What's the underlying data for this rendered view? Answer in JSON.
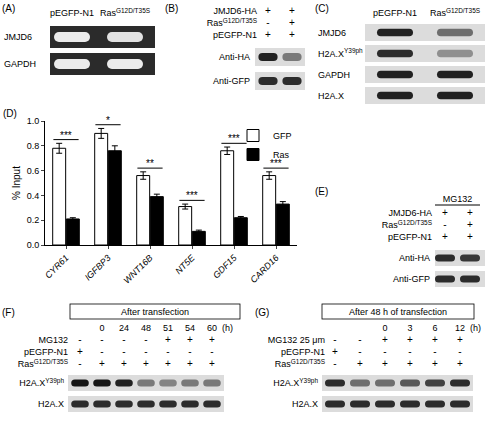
{
  "chart_data": {
    "type": "bar",
    "panel_label": "(D)",
    "y_label": "% Input",
    "categories": [
      "CYR61",
      "IGFBP3",
      "WNT16B",
      "NT5E",
      "GDF15",
      "CARD16"
    ],
    "series": [
      {
        "name": "GFP",
        "color": "#ffffff",
        "values": [
          0.78,
          0.9,
          0.56,
          0.31,
          0.76,
          0.56
        ],
        "errors": [
          0.04,
          0.04,
          0.03,
          0.02,
          0.03,
          0.03
        ]
      },
      {
        "name": "Ras",
        "color": "#000000",
        "values": [
          0.21,
          0.76,
          0.39,
          0.11,
          0.22,
          0.33
        ],
        "errors": [
          0.01,
          0.04,
          0.02,
          0.01,
          0.01,
          0.02
        ]
      }
    ],
    "significance": [
      "***",
      "*",
      "**",
      "***",
      "***",
      "***"
    ],
    "ylim": [
      0,
      1.0
    ],
    "yticks": [
      {
        "value": 0,
        "label": "0.0"
      },
      {
        "value": 0.2,
        "label": "0.2"
      },
      {
        "value": 0.4,
        "label": "0.4"
      },
      {
        "value": 0.6,
        "label": "0.6"
      },
      {
        "value": 0.8,
        "label": "0.8"
      },
      {
        "value": 1.0,
        "label": "1.0"
      }
    ],
    "legend": "upper right",
    "grid": false
  },
  "panels": [
    {
      "label": "(A)",
      "kind": "gel",
      "columns": [
        "pEGFP-N1",
        {
          "base": "Ras",
          "sup": "G12D/T35S"
        }
      ],
      "blots": [
        {
          "name": "JMJD6",
          "bands": [
            0.9,
            0.85
          ]
        },
        {
          "name": "GAPDH",
          "bands": [
            0.9,
            0.9
          ]
        }
      ]
    },
    {
      "label": "(B)",
      "kind": "western",
      "conditions": [
        {
          "name": "JMJD6-HA",
          "signs": [
            "+",
            "+"
          ]
        },
        {
          "name": {
            "base": "Ras",
            "sup": "G12D/T35S"
          },
          "signs": [
            "-",
            "+"
          ]
        },
        {
          "name": "pEGFP-N1",
          "signs": [
            "+",
            "+"
          ]
        }
      ],
      "blots": [
        {
          "name": "Anti-HA",
          "bands": [
            0.85,
            0.45
          ]
        },
        {
          "name": "Anti-GFP",
          "bands": [
            0.8,
            0.8
          ]
        }
      ]
    },
    {
      "label": "(C)",
      "kind": "western",
      "columns": [
        "pEGFP-N1",
        {
          "base": "Ras",
          "sup": "G12D/T35S"
        }
      ],
      "blots": [
        {
          "name": "JMJD6",
          "bands": [
            0.85,
            0.5
          ]
        },
        {
          "name": {
            "base": "H2A.X",
            "sup": "Y39ph"
          },
          "bands": [
            0.8,
            0.35
          ]
        },
        {
          "name": "GAPDH",
          "bands": [
            0.85,
            0.85
          ]
        },
        {
          "name": "H2A.X",
          "bands": [
            0.85,
            0.85
          ]
        }
      ]
    },
    {
      "label": "(E)",
      "kind": "western",
      "group_header": "MG132",
      "conditions": [
        {
          "name": "JMJD6-HA",
          "signs": [
            "+",
            "+"
          ]
        },
        {
          "name": {
            "base": "Ras",
            "sup": "G12D/T35S"
          },
          "signs": [
            "-",
            "+"
          ]
        },
        {
          "name": "pEGFP-N1",
          "signs": [
            "+",
            "+"
          ]
        }
      ],
      "blots": [
        {
          "name": "Anti-HA",
          "bands": [
            0.8,
            0.75
          ]
        },
        {
          "name": "Anti-GFP",
          "bands": [
            0.8,
            0.8
          ]
        }
      ]
    },
    {
      "label": "(F)",
      "kind": "western",
      "header": "After transfection",
      "time_labels": [
        null,
        0,
        24,
        48,
        51,
        54,
        60
      ],
      "time_unit": "(h)",
      "conditions": [
        {
          "name": "MG132",
          "signs": [
            "-",
            "-",
            "-",
            "-",
            "+",
            "+",
            "+"
          ]
        },
        {
          "name": "pEGFP-N1",
          "signs": [
            "+",
            "-",
            "-",
            "-",
            "-",
            "-",
            "-"
          ]
        },
        {
          "name": {
            "base": "Ras",
            "sup": "G12D/T35S"
          },
          "signs": [
            "-",
            "+",
            "+",
            "+",
            "+",
            "+",
            "+"
          ]
        }
      ],
      "blots": [
        {
          "name": {
            "base": "H2A.X",
            "sup": "Y39ph"
          },
          "bands": [
            0.9,
            0.9,
            0.85,
            0.45,
            0.4,
            0.45,
            0.45
          ]
        },
        {
          "name": "H2A.X",
          "bands": [
            0.8,
            0.8,
            0.8,
            0.8,
            0.8,
            0.8,
            0.8
          ]
        }
      ]
    },
    {
      "label": "(G)",
      "kind": "western",
      "header": "After 48 h of transfection",
      "time_labels": [
        null,
        null,
        0,
        3,
        6,
        12
      ],
      "time_unit": "(h)",
      "conditions": [
        {
          "name": "MG132 25 μm",
          "signs": [
            "-",
            "-",
            "+",
            "+",
            "+",
            "+"
          ]
        },
        {
          "name": "pEGFP-N1",
          "signs": [
            "+",
            "-",
            "-",
            "-",
            "-",
            "-"
          ]
        },
        {
          "name": {
            "base": "Ras",
            "sup": "G12D/T35S"
          },
          "signs": [
            "-",
            "+",
            "+",
            "+",
            "+",
            "+"
          ]
        }
      ],
      "blots": [
        {
          "name": {
            "base": "H2A.X",
            "sup": "Y39ph"
          },
          "bands": [
            0.8,
            0.5,
            0.5,
            0.6,
            0.7,
            0.8
          ]
        },
        {
          "name": "H2A.X",
          "bands": [
            0.8,
            0.8,
            0.8,
            0.8,
            0.8,
            0.8
          ]
        }
      ]
    }
  ]
}
